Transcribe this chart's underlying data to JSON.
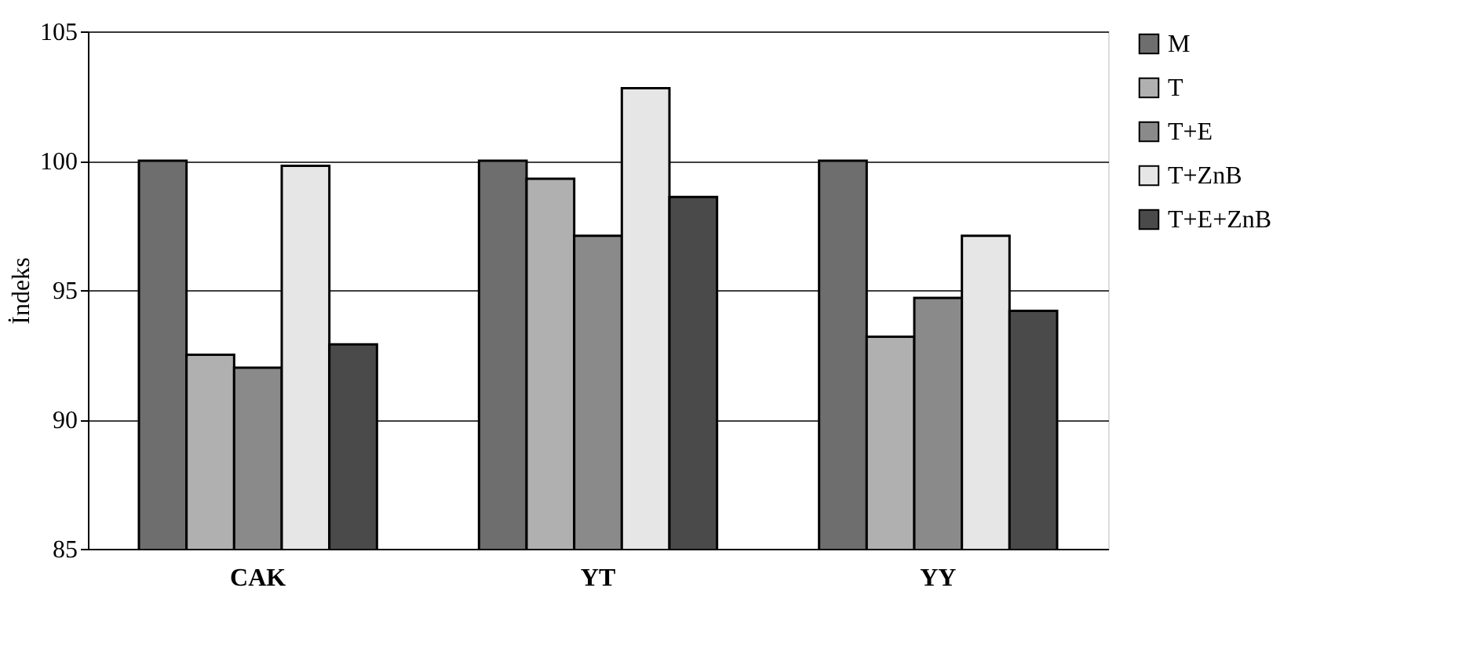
{
  "chart_data": {
    "type": "bar",
    "ylabel": "İndeks",
    "categories": [
      "CAK",
      "YT",
      "YY"
    ],
    "series": [
      {
        "name": "M",
        "color": "#6e6e6e",
        "values": [
          100,
          100,
          100
        ]
      },
      {
        "name": "T",
        "color": "#b0b0b0",
        "values": [
          92.5,
          99.3,
          93.2
        ]
      },
      {
        "name": "T+E",
        "color": "#8a8a8a",
        "values": [
          92.0,
          97.1,
          94.7
        ]
      },
      {
        "name": "T+ZnB",
        "color": "#e6e6e6",
        "values": [
          99.8,
          102.8,
          97.1
        ]
      },
      {
        "name": "T+E+ZnB",
        "color": "#4a4a4a",
        "values": [
          92.9,
          98.6,
          94.2
        ]
      }
    ],
    "ylim": [
      85,
      105
    ],
    "yticks": [
      85,
      90,
      95,
      100,
      105
    ],
    "grid": "y",
    "legend": "right"
  }
}
